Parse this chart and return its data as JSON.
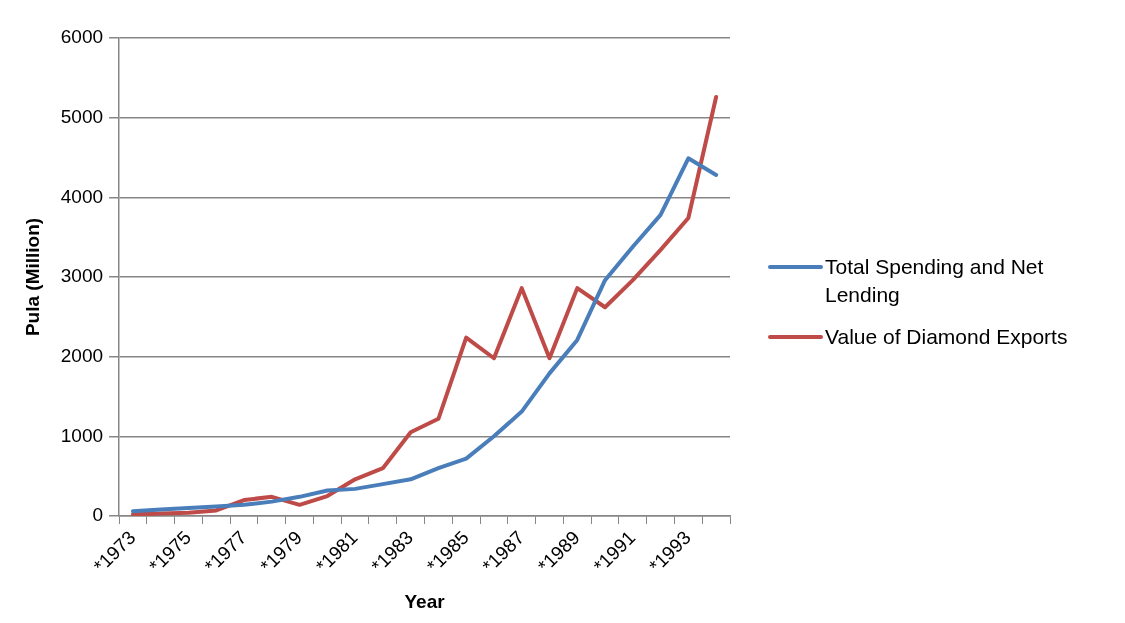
{
  "chart_data": {
    "type": "line",
    "xlabel": "Year",
    "ylabel": "Pula (Million)",
    "categories": [
      "*1973",
      null,
      "*1975",
      null,
      "*1977",
      null,
      "*1979",
      null,
      "*1981",
      null,
      "*1983",
      null,
      "*1985",
      null,
      "*1987",
      null,
      "*1989",
      null,
      "*1991",
      null,
      "*1993",
      null
    ],
    "series": [
      {
        "name": "Total Spending and Net Lending",
        "color": "#4a7ebb",
        "values": [
          60,
          80,
          100,
          120,
          140,
          180,
          240,
          320,
          340,
          400,
          460,
          600,
          720,
          1000,
          1310,
          1790,
          2210,
          2960,
          3380,
          3780,
          4490,
          4280
        ]
      },
      {
        "name": "Value of Diamond Exports",
        "color": "#be4b48",
        "values": [
          20,
          30,
          40,
          70,
          200,
          240,
          140,
          250,
          460,
          600,
          1050,
          1220,
          2240,
          1980,
          2860,
          1980,
          2860,
          2620,
          2960,
          3340,
          3740,
          5260
        ]
      }
    ],
    "ylim": [
      0,
      6000
    ],
    "yticks": [
      0,
      1000,
      2000,
      3000,
      4000,
      5000,
      6000
    ],
    "grid": "y",
    "legend": "right",
    "marker": "none",
    "line_style": "solid"
  }
}
